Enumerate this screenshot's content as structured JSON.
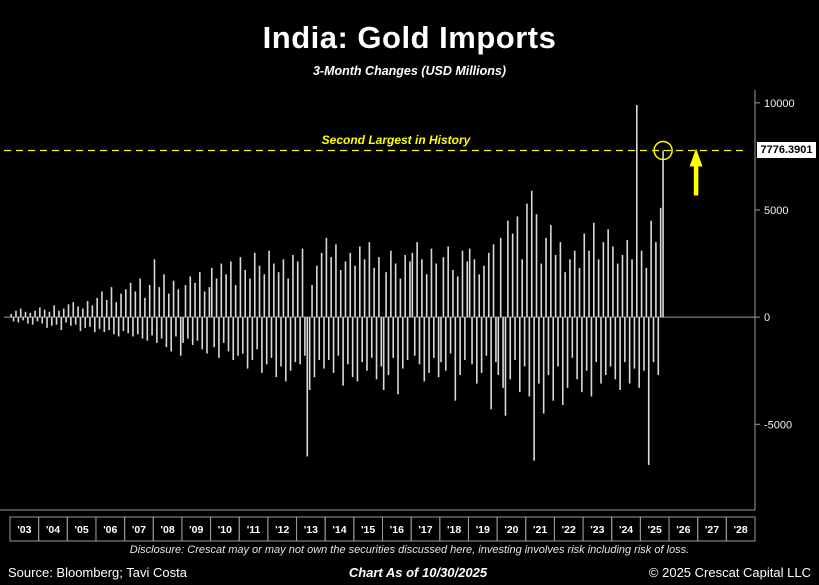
{
  "title": "India: Gold Imports",
  "subtitle": "3-Month Changes (USD Millions)",
  "annotation": {
    "label": "Second Largest in History",
    "value_label": "7776.3901"
  },
  "footer": {
    "disclosure": "Disclosure: Crescat may or may not own the securities discussed here, investing involves risk including risk of loss.",
    "source": "Source: Bloomberg; Tavi Costa",
    "as_of": "Chart As of 10/30/2025",
    "copyright": "© 2025 Crescat Capital LLC"
  },
  "colors": {
    "background": "#000000",
    "bar": "#d9d9d9",
    "accent_yellow": "#ffff00",
    "axis_gray": "#9a9a9a",
    "tick_text": "#f0f0f0",
    "value_box_bg": "#ffffff",
    "value_box_text": "#000000"
  },
  "chart_data": {
    "type": "bar",
    "title": "India: Gold Imports",
    "subtitle": "3-Month Changes (USD Millions)",
    "unit": "USD Millions",
    "frequency": "monthly",
    "start_year": 2003,
    "start_month": 1,
    "values": [
      150,
      -200,
      300,
      -250,
      400,
      -150,
      250,
      -300,
      200,
      -350,
      300,
      -200,
      450,
      -300,
      350,
      -500,
      250,
      -400,
      550,
      -350,
      300,
      -600,
      400,
      -250,
      600,
      -400,
      700,
      -350,
      500,
      -650,
      400,
      -500,
      750,
      -450,
      550,
      -700,
      900,
      -550,
      1200,
      -700,
      800,
      -600,
      1400,
      -800,
      700,
      -900,
      1100,
      -650,
      1300,
      -750,
      1600,
      -900,
      1200,
      -800,
      1800,
      -1000,
      900,
      -1100,
      1500,
      -850,
      2700,
      -1200,
      1400,
      -1000,
      2000,
      -1400,
      1100,
      -1600,
      1700,
      -900,
      1300,
      -1800,
      -1200,
      1500,
      -1000,
      1900,
      -1300,
      1600,
      -1100,
      2100,
      -1500,
      1200,
      -1700,
      1400,
      2300,
      -1400,
      1800,
      -1900,
      2500,
      -1200,
      2000,
      -1600,
      2600,
      -2000,
      1500,
      -1800,
      2800,
      -1700,
      2200,
      -2400,
      1800,
      -2000,
      3000,
      -1500,
      2400,
      -2600,
      2000,
      -2200,
      3100,
      -1900,
      2500,
      -2800,
      2100,
      -2300,
      2700,
      -3000,
      1800,
      -2500,
      2900,
      -2100,
      2600,
      -2200,
      3200,
      -1800,
      -6500,
      -3400,
      1500,
      -2800,
      2400,
      -2000,
      3000,
      -2400,
      3700,
      -2000,
      2800,
      -2600,
      3400,
      -1800,
      2200,
      -3200,
      2600,
      -2200,
      3000,
      -2800,
      2400,
      -3000,
      3300,
      -2100,
      2700,
      -2500,
      3500,
      -1900,
      2300,
      -2900,
      2800,
      -2300,
      -3400,
      2100,
      -2700,
      3100,
      -1900,
      2500,
      -3600,
      1800,
      -2400,
      2900,
      -2000,
      2600,
      3000,
      -1800,
      3500,
      -2200,
      2700,
      -3000,
      2000,
      -2600,
      3200,
      -1900,
      2500,
      -2800,
      -2100,
      2800,
      -2500,
      3300,
      -1700,
      2200,
      -3900,
      1900,
      -2700,
      3100,
      -2000,
      2600,
      3200,
      -2200,
      2700,
      -3100,
      2000,
      -2600,
      2400,
      -1800,
      3000,
      -4300,
      3400,
      -2100,
      -2700,
      3700,
      -3300,
      -4600,
      4500,
      -2900,
      3900,
      -2000,
      4700,
      -3500,
      2700,
      -2300,
      5300,
      -3700,
      5900,
      -6700,
      4800,
      -3100,
      2500,
      -4500,
      3700,
      -2700,
      4300,
      -3900,
      2900,
      -2300,
      3500,
      -4100,
      2100,
      -3300,
      2700,
      -1900,
      3100,
      -2900,
      2300,
      -3500,
      3900,
      -2500,
      3100,
      -3700,
      4400,
      -2100,
      2700,
      -3100,
      3500,
      -2700,
      4100,
      -2300,
      3300,
      -2900,
      2500,
      -3400,
      2900,
      -2100,
      3600,
      -3100,
      2700,
      -2400,
      9900,
      -3300,
      3100,
      -2500,
      2300,
      -6900,
      4500,
      -2100,
      3500,
      -2700,
      5100,
      7776.3901
    ],
    "highlight": {
      "label": "Second Largest in History",
      "value": 7776.3901,
      "date": "2025-10"
    },
    "yticks": [
      10000,
      5000,
      0,
      -5000
    ],
    "ylim": [
      -9000,
      10600
    ],
    "x_year_labels": [
      "'03",
      "'04",
      "'05",
      "'06",
      "'07",
      "'08",
      "'09",
      "'10",
      "'11",
      "'12",
      "'13",
      "'14",
      "'15",
      "'16",
      "'17",
      "'18",
      "'19",
      "'20",
      "'21",
      "'22",
      "'23",
      "'24",
      "'25",
      "'26",
      "'27",
      "'28"
    ],
    "x_domain_years": [
      2003,
      2029
    ],
    "y_axis_side": "right",
    "grid": false,
    "legend": false
  }
}
